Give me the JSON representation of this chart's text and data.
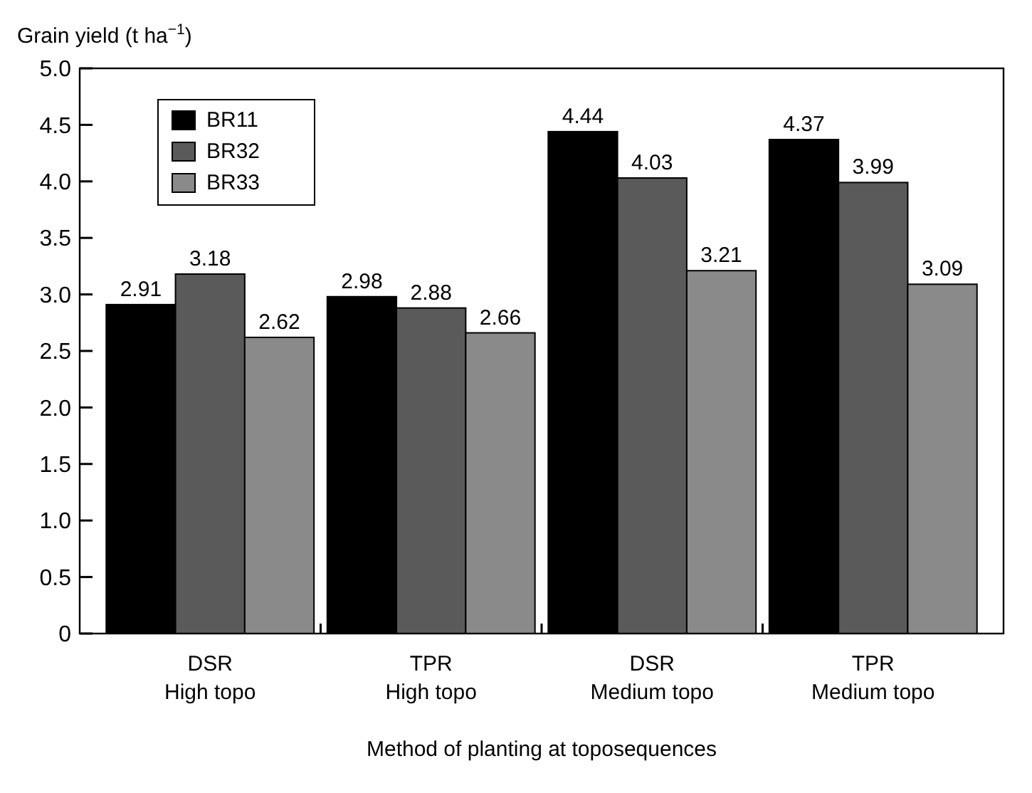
{
  "chart_data": {
    "type": "bar",
    "ylabel": "Grain yield (t ha$^{−1}$)",
    "xlabel": "Method of planting at toposequences",
    "categories": [
      "DSR\nHigh topo",
      "TPR\nHigh topo",
      "DSR\nMedium topo",
      "TPR\nMedium topo"
    ],
    "series": [
      {
        "name": "BR11",
        "color": "#000000",
        "values": [
          2.91,
          2.98,
          4.44,
          4.37
        ]
      },
      {
        "name": "BR32",
        "color": "#5a5a5a",
        "values": [
          3.18,
          2.88,
          4.03,
          3.99
        ]
      },
      {
        "name": "BR33",
        "color": "#8a8a8a",
        "values": [
          2.62,
          2.66,
          3.21,
          3.09
        ]
      }
    ],
    "ylim": [
      0,
      5
    ],
    "yticks": [
      0,
      0.5,
      {
        "value": 1,
        "label": "1.0"
      },
      1.5,
      {
        "value": 2,
        "label": "2.0"
      },
      2.5,
      {
        "value": 3,
        "label": "3.0"
      },
      3.5,
      {
        "value": 4,
        "label": "4.0"
      },
      4.5,
      {
        "value": 5,
        "label": "5.0"
      }
    ],
    "data_labels": true,
    "legend": "top left",
    "grid": false
  }
}
